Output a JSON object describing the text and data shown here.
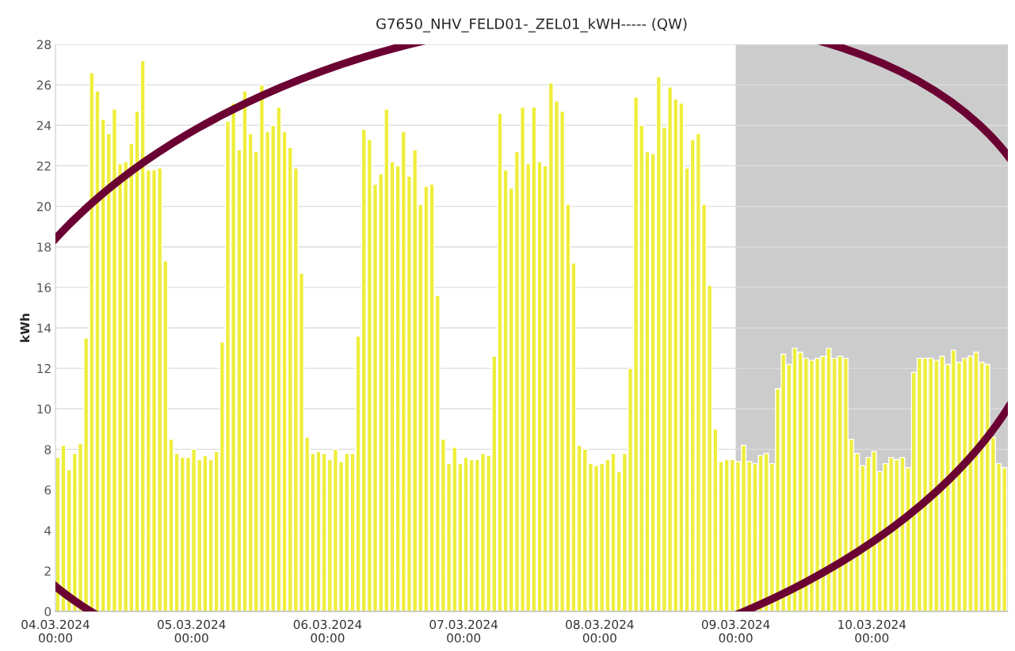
{
  "chart_data": {
    "type": "bar",
    "title": "G7650_NHV_FELD01-_ZEL01_kWH----- (QW)",
    "ylabel": "kWh",
    "x": [
      "2024-03-04T00:00",
      "2024-03-04T01:00",
      "2024-03-04T02:00",
      "2024-03-04T03:00",
      "2024-03-04T04:00",
      "2024-03-04T05:00",
      "2024-03-04T06:00",
      "2024-03-04T07:00",
      "2024-03-04T08:00",
      "2024-03-04T09:00",
      "2024-03-04T10:00",
      "2024-03-04T11:00",
      "2024-03-04T12:00",
      "2024-03-04T13:00",
      "2024-03-04T14:00",
      "2024-03-04T15:00",
      "2024-03-04T16:00",
      "2024-03-04T17:00",
      "2024-03-04T18:00",
      "2024-03-04T19:00",
      "2024-03-04T20:00",
      "2024-03-04T21:00",
      "2024-03-04T22:00",
      "2024-03-04T23:00",
      "2024-03-05T00:00",
      "2024-03-05T01:00",
      "2024-03-05T02:00",
      "2024-03-05T03:00",
      "2024-03-05T04:00",
      "2024-03-05T05:00",
      "2024-03-05T06:00",
      "2024-03-05T07:00",
      "2024-03-05T08:00",
      "2024-03-05T09:00",
      "2024-03-05T10:00",
      "2024-03-05T11:00",
      "2024-03-05T12:00",
      "2024-03-05T13:00",
      "2024-03-05T14:00",
      "2024-03-05T15:00",
      "2024-03-05T16:00",
      "2024-03-05T17:00",
      "2024-03-05T18:00",
      "2024-03-05T19:00",
      "2024-03-05T20:00",
      "2024-03-05T21:00",
      "2024-03-05T22:00",
      "2024-03-05T23:00",
      "2024-03-06T00:00",
      "2024-03-06T01:00",
      "2024-03-06T02:00",
      "2024-03-06T03:00",
      "2024-03-06T04:00",
      "2024-03-06T05:00",
      "2024-03-06T06:00",
      "2024-03-06T07:00",
      "2024-03-06T08:00",
      "2024-03-06T09:00",
      "2024-03-06T10:00",
      "2024-03-06T11:00",
      "2024-03-06T12:00",
      "2024-03-06T13:00",
      "2024-03-06T14:00",
      "2024-03-06T15:00",
      "2024-03-06T16:00",
      "2024-03-06T17:00",
      "2024-03-06T18:00",
      "2024-03-06T19:00",
      "2024-03-06T20:00",
      "2024-03-06T21:00",
      "2024-03-06T22:00",
      "2024-03-06T23:00",
      "2024-03-07T00:00",
      "2024-03-07T01:00",
      "2024-03-07T02:00",
      "2024-03-07T03:00",
      "2024-03-07T04:00",
      "2024-03-07T05:00",
      "2024-03-07T06:00",
      "2024-03-07T07:00",
      "2024-03-07T08:00",
      "2024-03-07T09:00",
      "2024-03-07T10:00",
      "2024-03-07T11:00",
      "2024-03-07T12:00",
      "2024-03-07T13:00",
      "2024-03-07T14:00",
      "2024-03-07T15:00",
      "2024-03-07T16:00",
      "2024-03-07T17:00",
      "2024-03-07T18:00",
      "2024-03-07T19:00",
      "2024-03-07T20:00",
      "2024-03-07T21:00",
      "2024-03-07T22:00",
      "2024-03-07T23:00",
      "2024-03-08T00:00",
      "2024-03-08T01:00",
      "2024-03-08T02:00",
      "2024-03-08T03:00",
      "2024-03-08T04:00",
      "2024-03-08T05:00",
      "2024-03-08T06:00",
      "2024-03-08T07:00",
      "2024-03-08T08:00",
      "2024-03-08T09:00",
      "2024-03-08T10:00",
      "2024-03-08T11:00",
      "2024-03-08T12:00",
      "2024-03-08T13:00",
      "2024-03-08T14:00",
      "2024-03-08T15:00",
      "2024-03-08T16:00",
      "2024-03-08T17:00",
      "2024-03-08T18:00",
      "2024-03-08T19:00",
      "2024-03-08T20:00",
      "2024-03-08T21:00",
      "2024-03-08T22:00",
      "2024-03-08T23:00",
      "2024-03-09T00:00",
      "2024-03-09T01:00",
      "2024-03-09T02:00",
      "2024-03-09T03:00",
      "2024-03-09T04:00",
      "2024-03-09T05:00",
      "2024-03-09T06:00",
      "2024-03-09T07:00",
      "2024-03-09T08:00",
      "2024-03-09T09:00",
      "2024-03-09T10:00",
      "2024-03-09T11:00",
      "2024-03-09T12:00",
      "2024-03-09T13:00",
      "2024-03-09T14:00",
      "2024-03-09T15:00",
      "2024-03-09T16:00",
      "2024-03-09T17:00",
      "2024-03-09T18:00",
      "2024-03-09T19:00",
      "2024-03-09T20:00",
      "2024-03-09T21:00",
      "2024-03-09T22:00",
      "2024-03-09T23:00",
      "2024-03-10T00:00",
      "2024-03-10T01:00",
      "2024-03-10T02:00",
      "2024-03-10T03:00",
      "2024-03-10T04:00",
      "2024-03-10T05:00",
      "2024-03-10T06:00",
      "2024-03-10T07:00",
      "2024-03-10T08:00",
      "2024-03-10T09:00",
      "2024-03-10T10:00",
      "2024-03-10T11:00",
      "2024-03-10T12:00",
      "2024-03-10T13:00",
      "2024-03-10T14:00",
      "2024-03-10T15:00",
      "2024-03-10T16:00",
      "2024-03-10T17:00",
      "2024-03-10T18:00",
      "2024-03-10T19:00",
      "2024-03-10T20:00",
      "2024-03-10T21:00",
      "2024-03-10T22:00",
      "2024-03-10T23:00"
    ],
    "values": [
      7.6,
      8.2,
      7.0,
      7.8,
      8.3,
      13.5,
      26.6,
      25.7,
      24.3,
      23.6,
      24.8,
      22.1,
      22.2,
      23.1,
      24.7,
      27.2,
      21.8,
      21.8,
      21.9,
      17.3,
      8.5,
      7.8,
      7.6,
      7.6,
      8.0,
      7.5,
      7.7,
      7.5,
      7.9,
      13.3,
      24.2,
      25.1,
      22.8,
      25.7,
      23.6,
      22.7,
      26.0,
      23.7,
      24.0,
      24.9,
      23.7,
      22.9,
      21.9,
      16.7,
      8.6,
      7.8,
      7.9,
      7.8,
      7.5,
      8.0,
      7.4,
      7.8,
      7.8,
      13.6,
      23.8,
      23.3,
      21.1,
      21.6,
      24.8,
      22.2,
      22.0,
      23.7,
      21.5,
      22.8,
      20.1,
      21.0,
      21.1,
      15.6,
      8.5,
      7.3,
      8.1,
      7.3,
      7.6,
      7.5,
      7.5,
      7.8,
      7.7,
      12.6,
      24.6,
      21.8,
      20.9,
      22.7,
      24.9,
      22.1,
      24.9,
      22.2,
      22.0,
      26.1,
      25.2,
      24.7,
      20.1,
      17.2,
      8.2,
      8.0,
      7.3,
      7.2,
      7.3,
      7.5,
      7.8,
      6.9,
      7.8,
      12.0,
      25.4,
      24.0,
      22.7,
      22.6,
      26.4,
      23.9,
      25.9,
      25.3,
      25.1,
      21.9,
      23.3,
      23.6,
      20.1,
      16.1,
      9.0,
      7.4,
      7.5,
      7.5,
      7.4,
      8.2,
      7.4,
      7.3,
      7.7,
      7.8,
      7.3,
      11.0,
      12.7,
      12.2,
      13.0,
      12.8,
      12.5,
      12.4,
      12.5,
      12.6,
      13.0,
      12.5,
      12.6,
      12.5,
      8.5,
      7.8,
      7.2,
      7.6,
      7.9,
      6.9,
      7.3,
      7.6,
      7.5,
      7.6,
      7.1,
      11.8,
      12.5,
      12.5,
      12.5,
      12.4,
      12.6,
      12.2,
      12.9,
      12.3,
      12.5,
      12.6,
      12.8,
      12.3,
      12.2,
      8.6,
      7.3,
      7.1
    ],
    "color": "#eeee3c",
    "xlim": [
      "2024-03-04T00:00",
      "2024-03-11T00:00"
    ],
    "xticks": [
      {
        "value": "2024-03-04T00:00",
        "label": "04.03.2024\n00:00"
      },
      {
        "value": "2024-03-05T00:00",
        "label": "05.03.2024\n00:00"
      },
      {
        "value": "2024-03-06T00:00",
        "label": "06.03.2024\n00:00"
      },
      {
        "value": "2024-03-07T00:00",
        "label": "07.03.2024\n00:00"
      },
      {
        "value": "2024-03-08T00:00",
        "label": "08.03.2024\n00:00"
      },
      {
        "value": "2024-03-09T00:00",
        "label": "09.03.2024\n00:00"
      },
      {
        "value": "2024-03-10T00:00",
        "label": "10.03.2024\n00:00"
      }
    ],
    "ylim": [
      0,
      28
    ],
    "yticks": [
      0,
      2,
      4,
      6,
      8,
      10,
      12,
      14,
      16,
      18,
      20,
      22,
      24,
      26,
      28
    ],
    "grid": "y",
    "bands": [
      {
        "axis": "x",
        "from": "2024-03-09T00:00",
        "to": "2024-03-11T00:00",
        "color": "#cccccc"
      }
    ]
  }
}
